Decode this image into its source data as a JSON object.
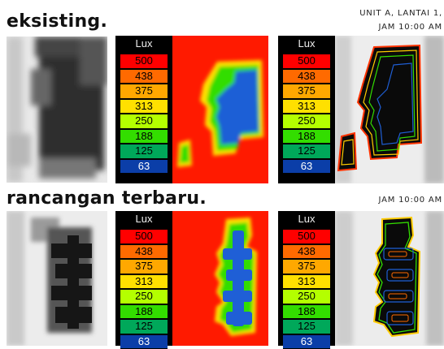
{
  "sections": [
    {
      "heading": "eksisting.",
      "meta_lines": [
        "UNIT A, LANTAI 1,",
        "JAM 10:00 AM"
      ]
    },
    {
      "heading": "rancangan terbaru.",
      "meta_lines": [
        "JAM 10:00 AM"
      ]
    }
  ],
  "legend": {
    "title": "Lux",
    "entries": [
      {
        "label": "500",
        "color": "#ff0000"
      },
      {
        "label": "438",
        "color": "#ff6a00"
      },
      {
        "label": "375",
        "color": "#ffa800"
      },
      {
        "label": "313",
        "color": "#ffe000"
      },
      {
        "label": "250",
        "color": "#b4ff00"
      },
      {
        "label": "188",
        "color": "#33dd00"
      },
      {
        "label": "125",
        "color": "#00a85a"
      },
      {
        "label": "63",
        "color": "#0b3ea8"
      }
    ]
  },
  "colors": {
    "heatmap_red": "#ff1a00",
    "heatmap_blue": "#1f5fd6",
    "heatmap_green": "#2fd84b",
    "contour_bg": "#000000"
  }
}
